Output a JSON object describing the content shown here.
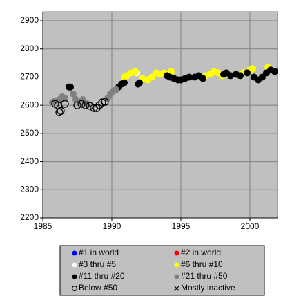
{
  "chart_data": {
    "type": "scatter",
    "xlim": [
      1985,
      2002
    ],
    "ylim": [
      2200,
      2932
    ],
    "xticks": [
      1985,
      1990,
      1995,
      2000
    ],
    "yticks": [
      2200,
      2300,
      2400,
      2500,
      2600,
      2700,
      2800,
      2900
    ],
    "grid": true,
    "plot_background": "#c0c0c0",
    "legend": "bottom",
    "series": [
      {
        "name": "#1 in world",
        "color": "#0000ff",
        "marker": "circle",
        "x": [],
        "y": []
      },
      {
        "name": "#2 in world",
        "color": "#ff0000",
        "marker": "circle",
        "x": [],
        "y": []
      },
      {
        "name": "#3 thru #5",
        "color": "#ffffff",
        "marker": "circle",
        "x": [
          1991.8
        ],
        "y": [
          2715
        ]
      },
      {
        "name": "#6 thru #10",
        "color": "#ffff00",
        "marker": "circle",
        "x": [
          1990.9,
          1991.1,
          1991.4,
          1991.7,
          1992.2,
          1992.6,
          1992.9,
          1993.2,
          1993.5,
          1993.8,
          1994.3,
          1996.8,
          1997.1,
          1997.4,
          1997.7,
          1998.0,
          1999.5,
          2000.0,
          2000.2,
          2001.3
        ],
        "y": [
          2700,
          2705,
          2715,
          2720,
          2695,
          2690,
          2700,
          2715,
          2710,
          2715,
          2720,
          2705,
          2710,
          2720,
          2715,
          2705,
          2715,
          2725,
          2730,
          2735
        ]
      },
      {
        "name": "#11 thru #20",
        "color": "#000000",
        "marker": "circle",
        "x": [
          1986.9,
          1987.0,
          1990.5,
          1990.7,
          1990.9,
          1991.9,
          1992.0,
          1994.0,
          1994.2,
          1994.5,
          1994.8,
          1995.0,
          1995.3,
          1995.6,
          1996.0,
          1996.3,
          1996.6,
          1998.1,
          1998.3,
          1998.6,
          1999.0,
          1999.3,
          1999.8,
          2000.3,
          2000.6,
          2000.9,
          2001.2,
          2001.5,
          2001.8
        ],
        "y": [
          2665,
          2665,
          2665,
          2675,
          2680,
          2675,
          2680,
          2705,
          2700,
          2695,
          2690,
          2690,
          2695,
          2700,
          2700,
          2705,
          2695,
          2710,
          2715,
          2705,
          2710,
          2705,
          2715,
          2700,
          2690,
          2700,
          2715,
          2725,
          2720
        ]
      },
      {
        "name": "#21 thru #50",
        "color": "#808080",
        "marker": "circle",
        "x": [
          1985.7,
          1985.9,
          1986.2,
          1986.4,
          1986.6,
          1987.2,
          1987.4,
          1987.9,
          1988.2,
          1989.7,
          1989.9,
          1990.1,
          1990.3
        ],
        "y": [
          2610,
          2615,
          2620,
          2630,
          2625,
          2640,
          2620,
          2620,
          2605,
          2625,
          2640,
          2650,
          2655
        ]
      },
      {
        "name": "Below #50",
        "color": "#000000",
        "marker": "open-circle",
        "x": [
          1985.9,
          1986.1,
          1986.2,
          1986.3,
          1986.6,
          1987.5,
          1987.8,
          1988.1,
          1988.4,
          1988.7,
          1988.9,
          1989.1,
          1989.3,
          1989.5
        ],
        "y": [
          2605,
          2600,
          2575,
          2580,
          2605,
          2600,
          2605,
          2600,
          2598,
          2590,
          2590,
          2600,
          2610,
          2612
        ]
      },
      {
        "name": "Mostly inactive",
        "color": "#000000",
        "marker": "x",
        "x": [],
        "y": []
      }
    ]
  }
}
